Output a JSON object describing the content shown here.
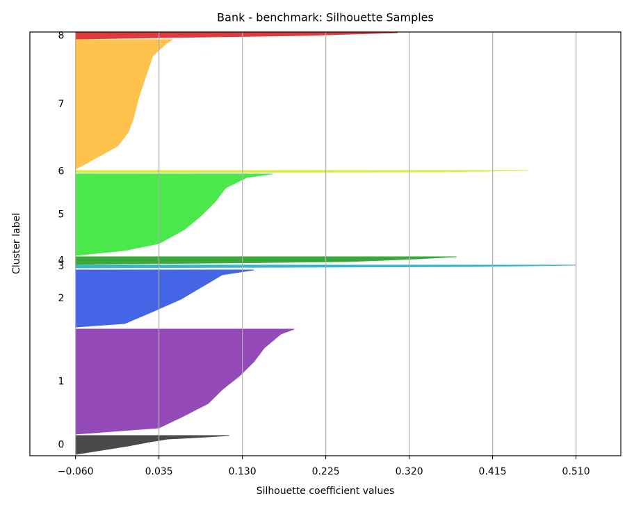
{
  "chart_data": {
    "type": "silhouette",
    "title": "Bank - benchmark: Silhouette Samples",
    "x_label": "Silhouette coefficient values",
    "y_label": "Cluster label",
    "xlim": [
      -0.112,
      0.561
    ],
    "ylim": [
      0,
      609
    ],
    "xticks": [
      {
        "value": -0.06,
        "label": "−0.060"
      },
      {
        "value": 0.035,
        "label": "0.035"
      },
      {
        "value": 0.13,
        "label": "0.130"
      },
      {
        "value": 0.225,
        "label": "0.225"
      },
      {
        "value": 0.32,
        "label": "0.320"
      },
      {
        "value": 0.415,
        "label": "0.415"
      },
      {
        "value": 0.51,
        "label": "0.510"
      }
    ],
    "grid": true,
    "series": [
      {
        "name": "0",
        "color": "#4a4a4a",
        "y": [
          2,
          8,
          14,
          20,
          24,
          27,
          29
        ],
        "values": [
          -0.06,
          -0.03,
          0.0,
          0.025,
          0.045,
          0.09,
          0.115
        ]
      },
      {
        "name": "1",
        "color": "#944ab8",
        "y": [
          31,
          40,
          55,
          75,
          95,
          115,
          135,
          155,
          175,
          182
        ],
        "values": [
          -0.06,
          0.035,
          0.06,
          0.091,
          0.107,
          0.127,
          0.143,
          0.155,
          0.174,
          0.189
        ]
      },
      {
        "name": "2",
        "color": "#4466e6",
        "y": [
          185,
          190,
          205,
          225,
          245,
          260,
          267
        ],
        "values": [
          -0.06,
          -0.004,
          0.024,
          0.06,
          0.087,
          0.107,
          0.143
        ]
      },
      {
        "name": "3",
        "color": "#36b8c8",
        "y": [
          270,
          271,
          272,
          274
        ],
        "values": [
          -0.06,
          0.2,
          0.4,
          0.51
        ]
      },
      {
        "name": "4",
        "color": "#3aa83a",
        "y": [
          275,
          279,
          283,
          286
        ],
        "values": [
          -0.06,
          0.25,
          0.33,
          0.374
        ]
      },
      {
        "name": "5",
        "color": "#4ae84a",
        "y": [
          288,
          295,
          305,
          325,
          345,
          365,
          385,
          400,
          405
        ],
        "values": [
          -0.06,
          -0.004,
          0.035,
          0.064,
          0.083,
          0.099,
          0.111,
          0.135,
          0.164
        ]
      },
      {
        "name": "6",
        "color": "#d6ee3c",
        "y": [
          407,
          408,
          410
        ],
        "values": [
          -0.06,
          0.35,
          0.455
        ]
      },
      {
        "name": "7",
        "color": "#ffc24d",
        "y": [
          412,
          420,
          445,
          465,
          485,
          515,
          545,
          575,
          593,
          598
        ],
        "values": [
          -0.06,
          -0.048,
          -0.012,
          0.0,
          0.006,
          0.012,
          0.02,
          0.028,
          0.044,
          0.05
        ]
      },
      {
        "name": "8",
        "color": "#e03a3a",
        "y": [
          599,
          604,
          608
        ],
        "values": [
          -0.06,
          0.2,
          0.307
        ]
      }
    ]
  }
}
